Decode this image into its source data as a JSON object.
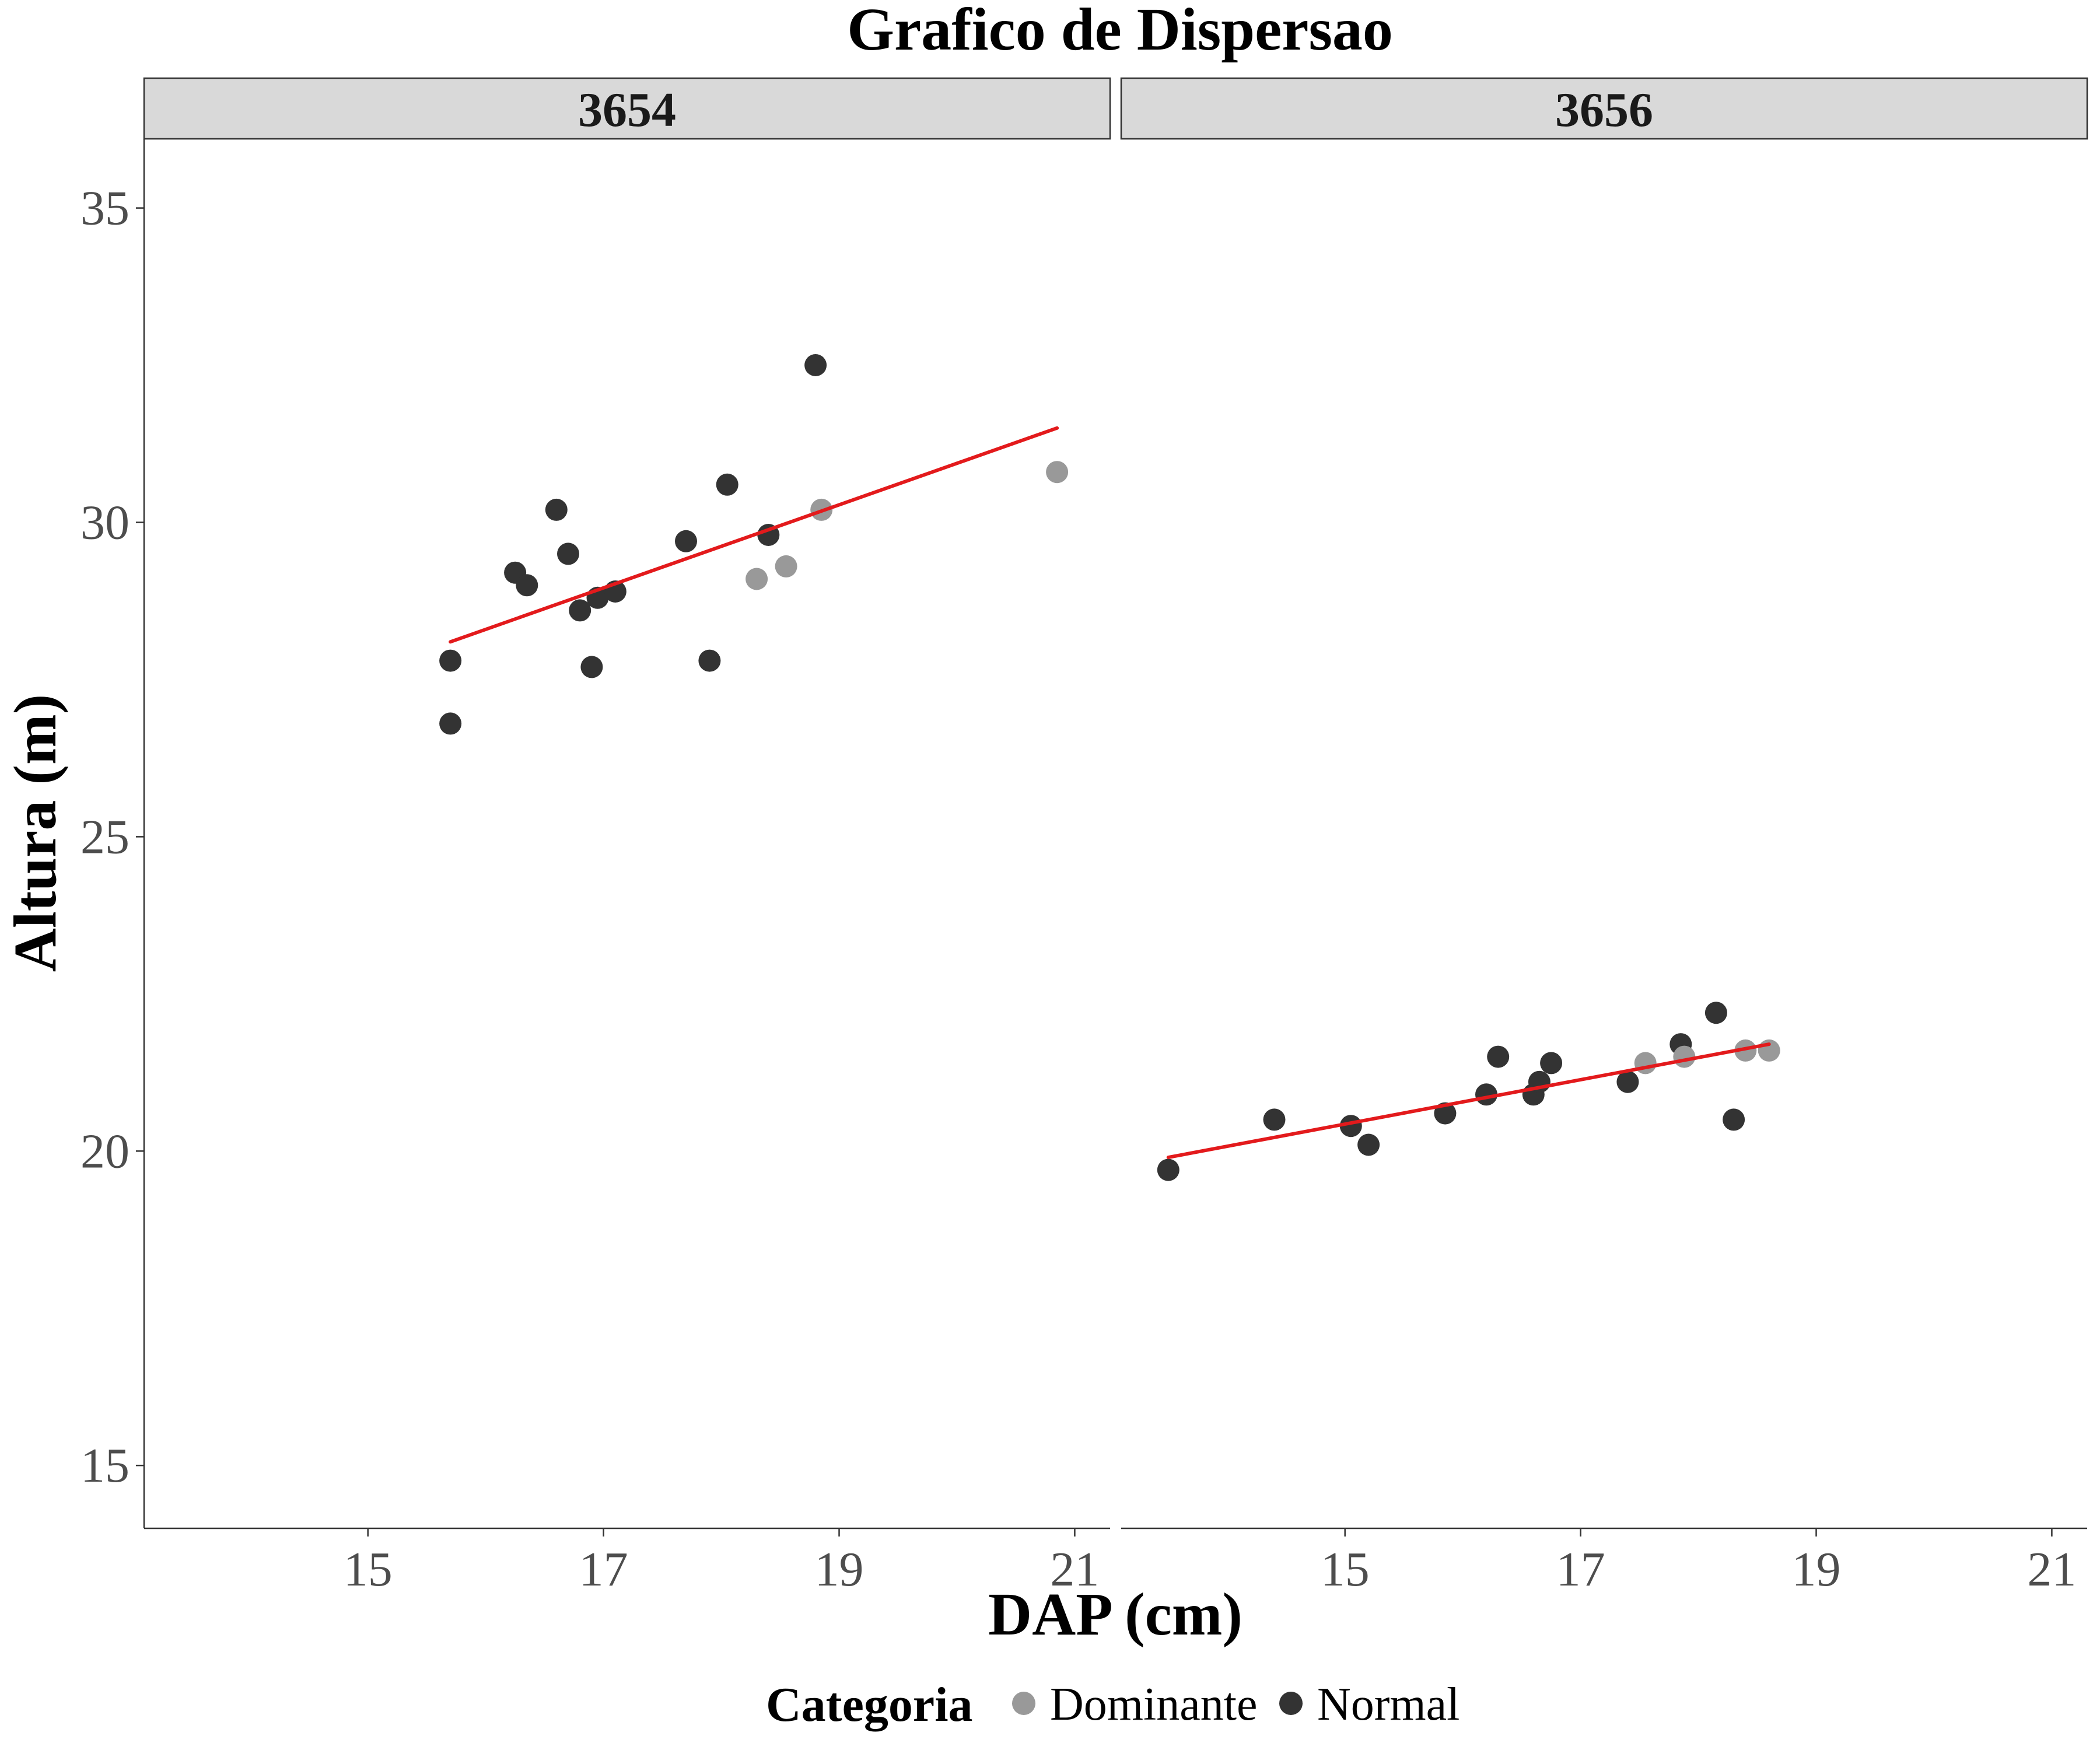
{
  "chart_data": {
    "type": "scatter",
    "title": "Grafico de Dispersao",
    "xlabel": "DAP (cm)",
    "ylabel": "Altura (m)",
    "xlim": [
      13.1,
      21.3
    ],
    "ylim": [
      14,
      36.1
    ],
    "x_ticks": [
      15,
      17,
      19,
      21
    ],
    "y_ticks": [
      15,
      20,
      25,
      30,
      35
    ],
    "legend": {
      "title": "Categoria",
      "position": "bottom",
      "items": [
        {
          "label": "Dominante",
          "color": "#999999"
        },
        {
          "label": "Normal",
          "color": "#333333"
        }
      ]
    },
    "grid": false,
    "fit_line_color": "#e31a1c",
    "panels": [
      {
        "label": "3654",
        "points": [
          {
            "x": 15.7,
            "y": 27.8,
            "cat": "Normal"
          },
          {
            "x": 15.7,
            "y": 26.8,
            "cat": "Normal"
          },
          {
            "x": 16.25,
            "y": 29.2,
            "cat": "Normal"
          },
          {
            "x": 16.35,
            "y": 29.0,
            "cat": "Normal"
          },
          {
            "x": 16.6,
            "y": 30.2,
            "cat": "Normal"
          },
          {
            "x": 16.7,
            "y": 29.5,
            "cat": "Normal"
          },
          {
            "x": 16.8,
            "y": 28.6,
            "cat": "Normal"
          },
          {
            "x": 16.9,
            "y": 27.7,
            "cat": "Normal"
          },
          {
            "x": 16.95,
            "y": 28.8,
            "cat": "Normal"
          },
          {
            "x": 17.1,
            "y": 28.9,
            "cat": "Normal"
          },
          {
            "x": 17.7,
            "y": 29.7,
            "cat": "Normal"
          },
          {
            "x": 17.9,
            "y": 27.8,
            "cat": "Normal"
          },
          {
            "x": 18.05,
            "y": 30.6,
            "cat": "Normal"
          },
          {
            "x": 18.3,
            "y": 29.1,
            "cat": "Dominante"
          },
          {
            "x": 18.4,
            "y": 29.8,
            "cat": "Normal"
          },
          {
            "x": 18.55,
            "y": 29.3,
            "cat": "Dominante"
          },
          {
            "x": 18.8,
            "y": 32.5,
            "cat": "Normal"
          },
          {
            "x": 18.85,
            "y": 30.2,
            "cat": "Dominante"
          },
          {
            "x": 20.85,
            "y": 30.8,
            "cat": "Dominante"
          }
        ],
        "fit": {
          "x": [
            15.7,
            20.85
          ],
          "y": [
            28.1,
            31.5
          ]
        }
      },
      {
        "label": "3656",
        "points": [
          {
            "x": 13.5,
            "y": 19.7,
            "cat": "Normal"
          },
          {
            "x": 14.4,
            "y": 20.5,
            "cat": "Normal"
          },
          {
            "x": 15.05,
            "y": 20.4,
            "cat": "Normal"
          },
          {
            "x": 15.2,
            "y": 20.1,
            "cat": "Normal"
          },
          {
            "x": 15.85,
            "y": 20.6,
            "cat": "Normal"
          },
          {
            "x": 16.2,
            "y": 20.9,
            "cat": "Normal"
          },
          {
            "x": 16.3,
            "y": 21.5,
            "cat": "Normal"
          },
          {
            "x": 16.6,
            "y": 20.9,
            "cat": "Normal"
          },
          {
            "x": 16.65,
            "y": 21.1,
            "cat": "Normal"
          },
          {
            "x": 16.75,
            "y": 21.4,
            "cat": "Normal"
          },
          {
            "x": 17.4,
            "y": 21.1,
            "cat": "Normal"
          },
          {
            "x": 17.55,
            "y": 21.4,
            "cat": "Dominante"
          },
          {
            "x": 17.85,
            "y": 21.7,
            "cat": "Normal"
          },
          {
            "x": 17.88,
            "y": 21.5,
            "cat": "Dominante"
          },
          {
            "x": 18.15,
            "y": 22.2,
            "cat": "Normal"
          },
          {
            "x": 18.3,
            "y": 20.5,
            "cat": "Normal"
          },
          {
            "x": 18.4,
            "y": 21.6,
            "cat": "Dominante"
          },
          {
            "x": 18.6,
            "y": 21.6,
            "cat": "Dominante"
          }
        ],
        "fit": {
          "x": [
            13.5,
            18.6
          ],
          "y": [
            19.9,
            21.7
          ]
        }
      }
    ]
  }
}
